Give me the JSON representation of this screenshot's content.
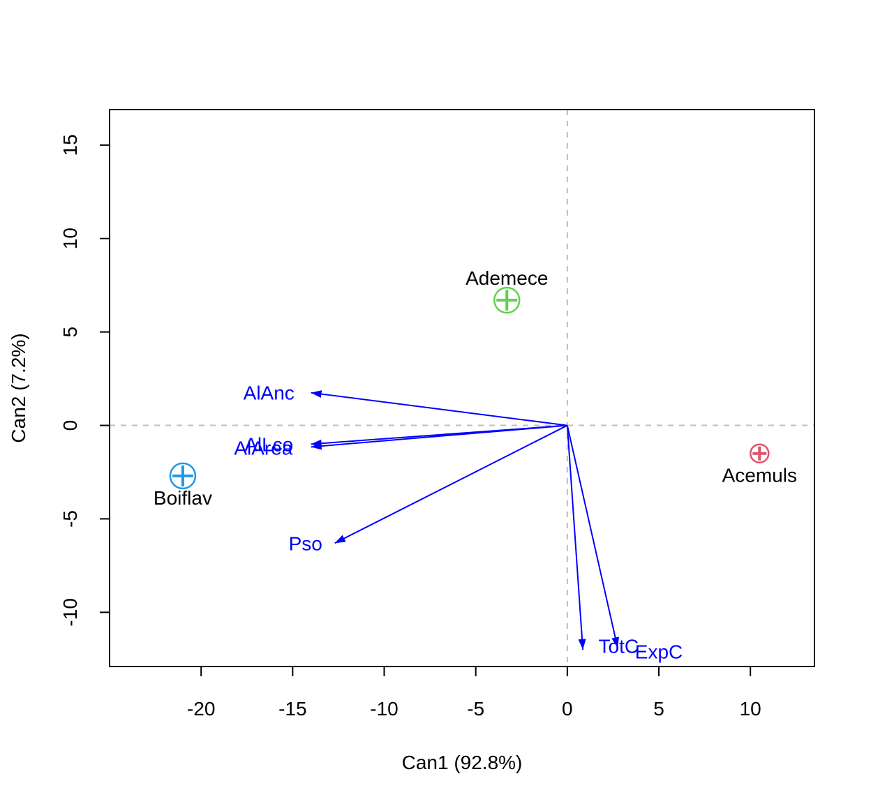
{
  "chart_data": {
    "type": "scatter",
    "subtype": "canonical-discriminant-biplot",
    "xlabel": "Can1 (92.8%)",
    "ylabel": "Can2 (7.2%)",
    "xlim": [
      -25,
      13.5
    ],
    "ylim": [
      -12.9,
      16.9
    ],
    "xticks": [
      -20,
      -15,
      -10,
      -5,
      0,
      5,
      10
    ],
    "yticks": [
      -10,
      -5,
      0,
      5,
      10,
      15
    ],
    "grid": false,
    "reference_lines": {
      "x": 0,
      "y": 0,
      "style": "dashed",
      "color": "#BEBEBE"
    },
    "groups": [
      {
        "name": "Ademece",
        "x": -3.3,
        "y": 6.7,
        "color": "#61D04F",
        "label_position": "above"
      },
      {
        "name": "Acemuls",
        "x": 10.5,
        "y": -1.5,
        "color": "#DF536B",
        "label_position": "below"
      },
      {
        "name": "Boiflav",
        "x": -21.0,
        "y": -2.7,
        "color": "#2297E6",
        "label_position": "below"
      }
    ],
    "vectors": [
      {
        "name": "AlAnc",
        "x": -14.0,
        "y": 1.75,
        "label_x": -16.3,
        "label_y": 1.75
      },
      {
        "name": "AlLco",
        "x": -14.0,
        "y": -1.0,
        "label_x": -16.3,
        "label_y": -1.0
      },
      {
        "name": "AlArea",
        "x": -14.0,
        "y": -1.15,
        "label_x": -16.6,
        "label_y": -1.2
      },
      {
        "name": "Pso",
        "x": -12.7,
        "y": -6.3,
        "label_x": -14.3,
        "label_y": -6.3
      },
      {
        "name": "TotC",
        "x": 0.85,
        "y": -12.0,
        "label_x": 2.8,
        "label_y": -11.8
      },
      {
        "name": "ExpC",
        "x": 2.75,
        "y": -11.9,
        "label_x": 5.0,
        "label_y": -12.1
      }
    ],
    "vector_color": "#0000FF"
  }
}
